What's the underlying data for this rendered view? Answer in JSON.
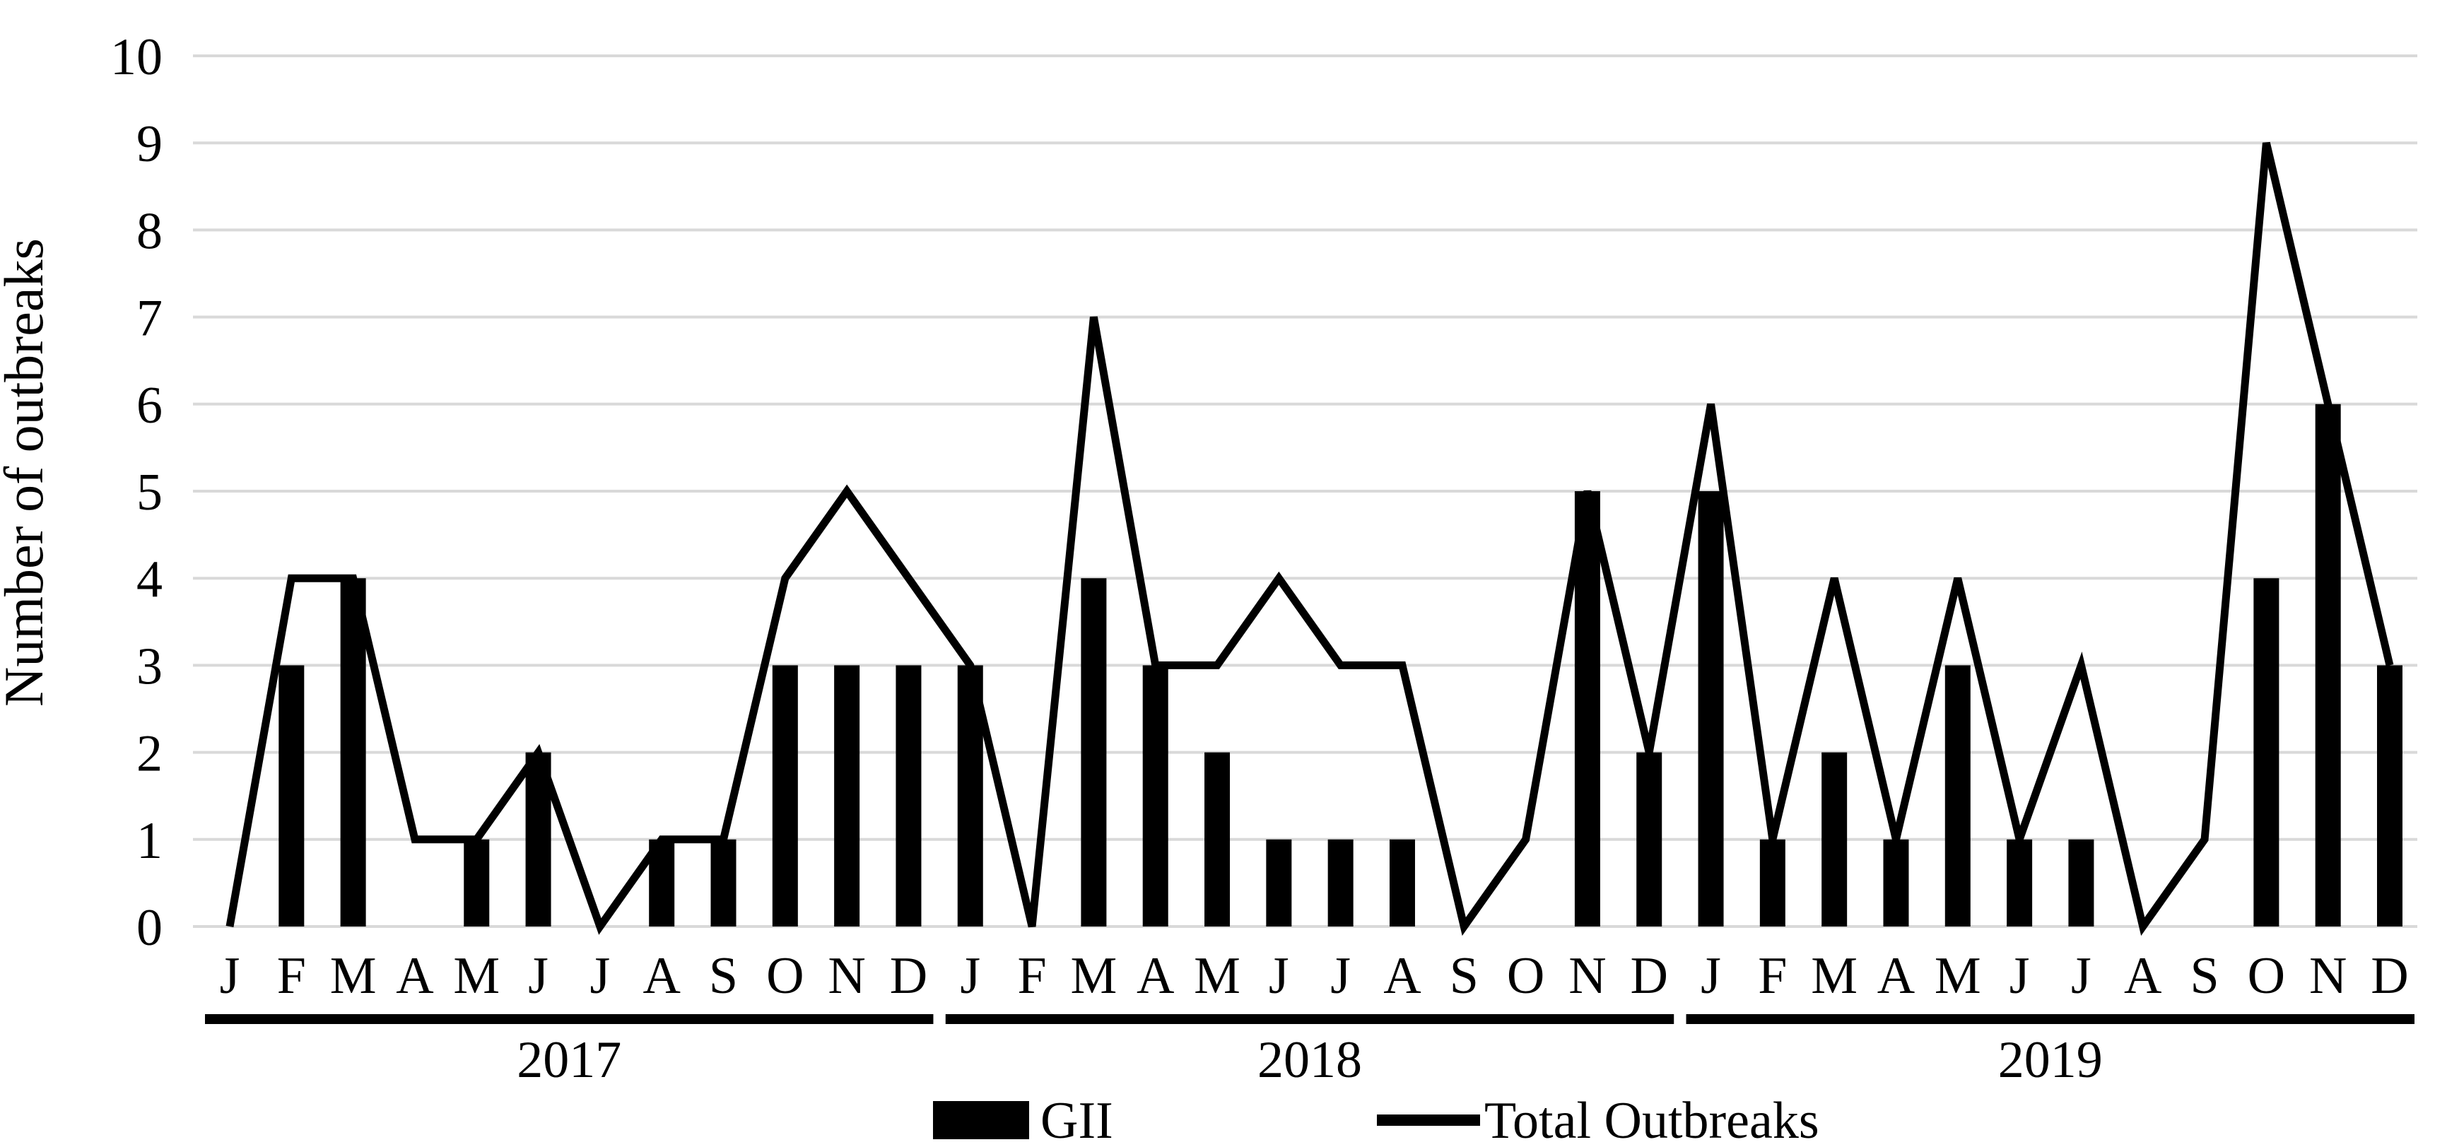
{
  "chart_data": {
    "type": "combo-bar-line",
    "title": "",
    "xlabel": "",
    "ylabel": "Number of outbreaks",
    "ylim": [
      0,
      10
    ],
    "yticks": [
      0,
      1,
      2,
      3,
      4,
      5,
      6,
      7,
      8,
      9,
      10
    ],
    "grid": "horizontal",
    "legend_position": "bottom",
    "month_labels": [
      "J",
      "F",
      "M",
      "A",
      "M",
      "J",
      "J",
      "A",
      "S",
      "O",
      "N",
      "D"
    ],
    "year_groups": [
      {
        "label": "2017",
        "start": 0,
        "end": 11
      },
      {
        "label": "2018",
        "start": 12,
        "end": 23
      },
      {
        "label": "2019",
        "start": 24,
        "end": 35
      }
    ],
    "series": [
      {
        "name": "GII",
        "type": "bar",
        "color": "#000000",
        "values": [
          0,
          3,
          4,
          0,
          1,
          2,
          0,
          1,
          1,
          3,
          3,
          3,
          3,
          0,
          4,
          3,
          2,
          1,
          1,
          1,
          0,
          0,
          5,
          2,
          5,
          1,
          2,
          1,
          3,
          1,
          1,
          0,
          0,
          4,
          6,
          3
        ]
      },
      {
        "name": "Total Outbreaks",
        "type": "line",
        "color": "#000000",
        "values": [
          0,
          4,
          4,
          1,
          1,
          2,
          0,
          1,
          1,
          4,
          5,
          4,
          3,
          0,
          7,
          3,
          3,
          4,
          3,
          3,
          0,
          1,
          5,
          2,
          6,
          1,
          4,
          1,
          4,
          1,
          3,
          0,
          1,
          9,
          6,
          3
        ]
      }
    ]
  },
  "colors": {
    "grid": "#d9d9d9",
    "series": "#000000",
    "background": "#ffffff",
    "text": "#000000"
  }
}
